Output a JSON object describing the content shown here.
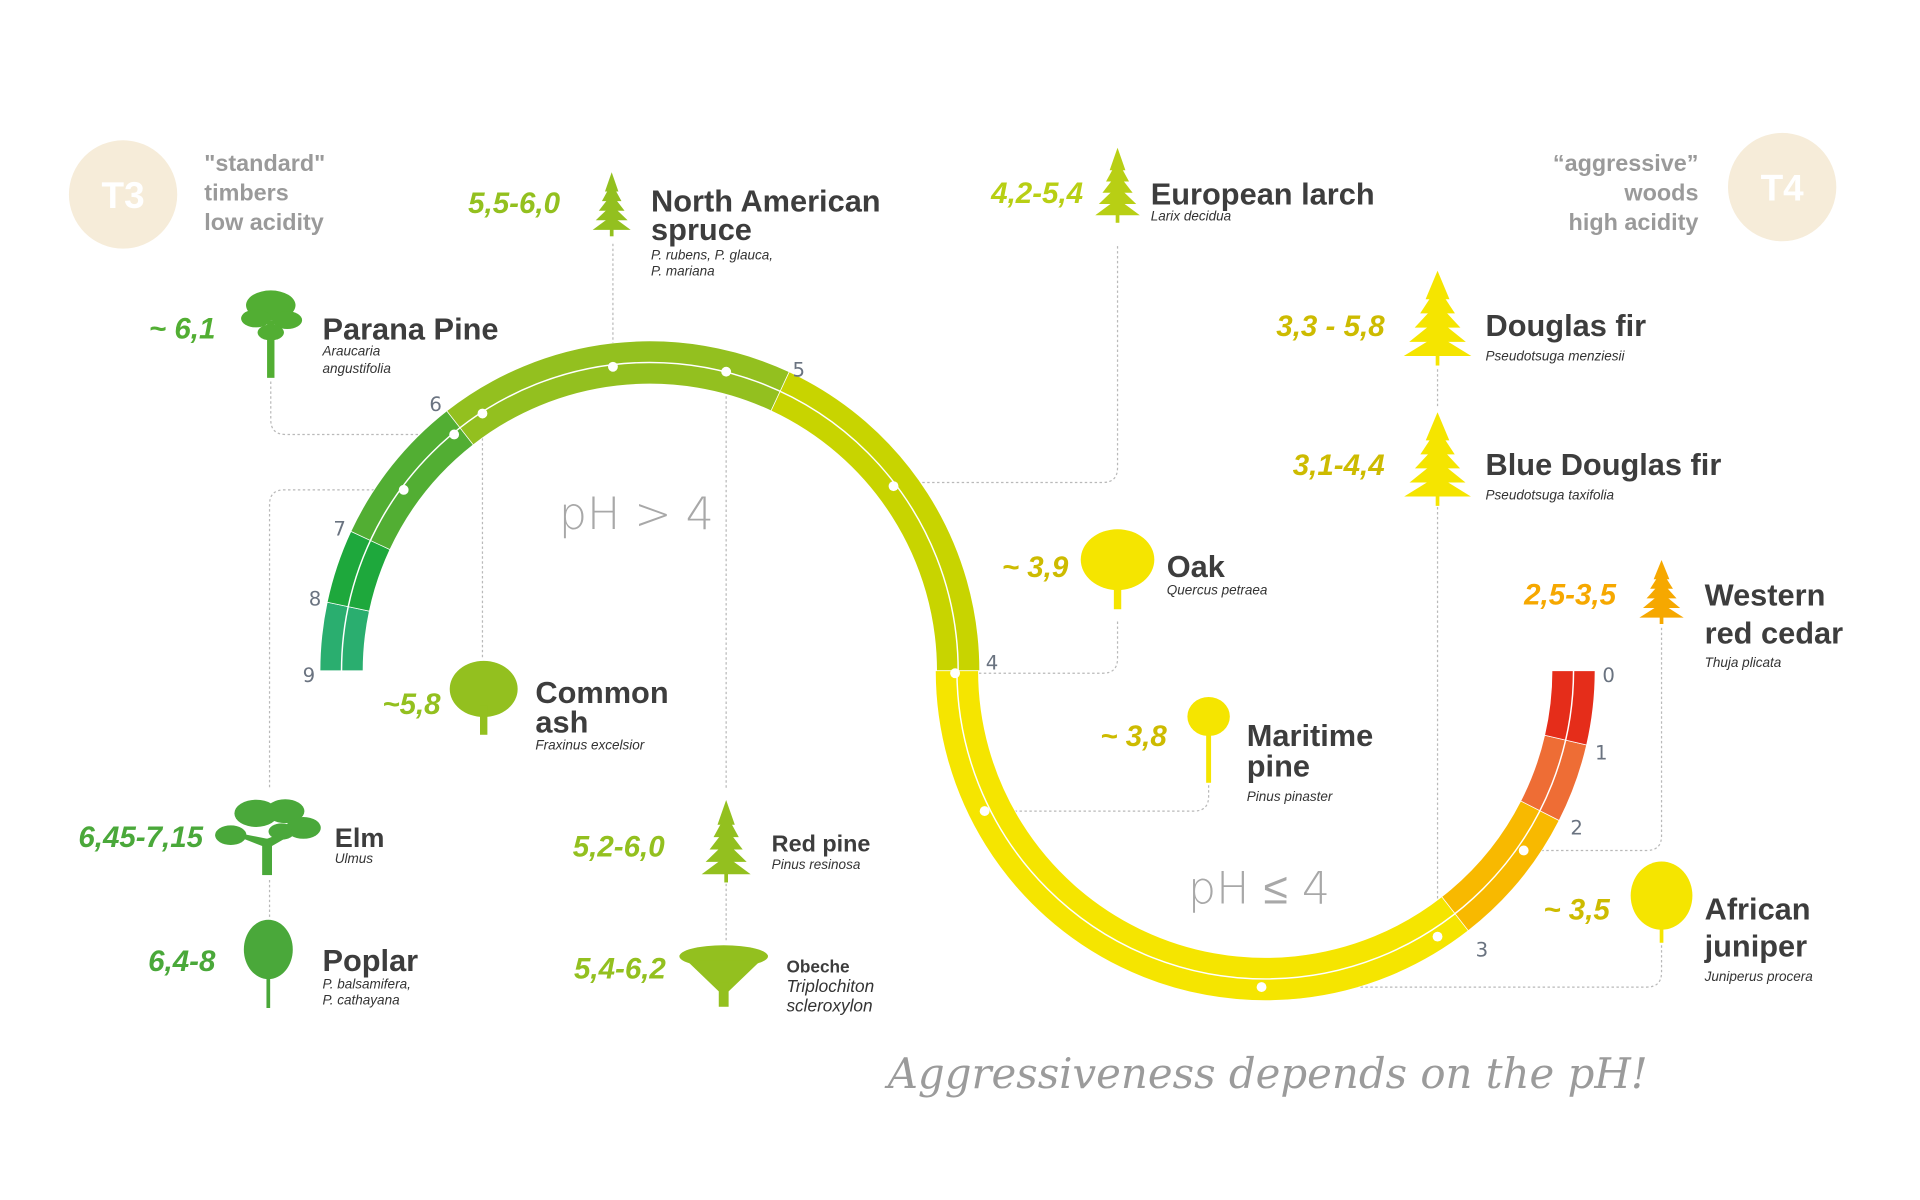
{
  "header": {
    "left": {
      "badge": "T3",
      "lines": [
        "\"standard\"",
        "timbers",
        "low acidity"
      ]
    },
    "right": {
      "badge": "T4",
      "lines": [
        "“aggressive”",
        "woods",
        "high acidity"
      ]
    },
    "badge_color": "#f6ecd9"
  },
  "regions": {
    "upper": "pH > 4",
    "lower": "pH ≤ 4"
  },
  "tagline": "Aggressiveness depends on the pH!",
  "scale": {
    "ticks": [
      "9",
      "8",
      "7",
      "6",
      "5",
      "4",
      "3",
      "2",
      "1",
      "0"
    ],
    "segments": [
      {
        "from": 9,
        "to": 8,
        "color": "#2aae6f"
      },
      {
        "from": 8,
        "to": 7,
        "color": "#1ea83c"
      },
      {
        "from": 7,
        "to": 6,
        "color": "#52ae33"
      },
      {
        "from": 6,
        "to": 5,
        "color": "#93c01f"
      },
      {
        "from": 5,
        "to": 4,
        "color": "#c8d400"
      },
      {
        "from": 4,
        "to": 3,
        "color": "#f5e500"
      },
      {
        "from": 3,
        "to": 2,
        "color": "#f8b900"
      },
      {
        "from": 2,
        "to": 1,
        "color": "#ee6d35"
      },
      {
        "from": 1,
        "to": 0,
        "color": "#e52d1a"
      }
    ]
  },
  "species": [
    {
      "value": "5,5-6,0",
      "name": [
        "North American",
        "spruce"
      ],
      "latin": [
        "P. rubens, P. glauca,",
        "P. mariana"
      ],
      "color": "#93c01f",
      "icon": "conifer-tree-icon"
    },
    {
      "value": "4,2-5,4",
      "name": [
        "European larch"
      ],
      "latin": [
        "Larix decidua"
      ],
      "color": "#b8cf14",
      "icon": "larch-tree-icon"
    },
    {
      "value": "~ 6,1",
      "name": [
        "Parana Pine"
      ],
      "latin": [
        "Araucaria",
        "angustifolia"
      ],
      "color": "#52ae33",
      "icon": "araucaria-tree-icon"
    },
    {
      "value": "3,3 - 5,8",
      "name": [
        "Douglas fir"
      ],
      "latin": [
        "Pseudotsuga menziesii"
      ],
      "color": "#cdbb00",
      "icon": "fir-tree-icon",
      "icon_color": "#f5e500"
    },
    {
      "value": "3,1-4,4",
      "name": [
        "Blue Douglas fir"
      ],
      "latin": [
        "Pseudotsuga taxifolia"
      ],
      "color": "#cdbb00",
      "icon": "fir-tree-icon",
      "icon_color": "#f5e500"
    },
    {
      "value": "~ 3,9",
      "name": [
        "Oak"
      ],
      "latin": [
        "Quercus petraea"
      ],
      "color": "#cdbb00",
      "icon": "oak-tree-icon",
      "icon_color": "#f5e500"
    },
    {
      "value": "2,5-3,5",
      "name": [
        "Western",
        "red cedar"
      ],
      "latin": [
        "Thuja plicata"
      ],
      "color": "#f6a800",
      "icon": "cedar-tree-icon"
    },
    {
      "value": "~5,8",
      "name": [
        "Common",
        "ash"
      ],
      "latin": [
        "Fraxinus excelsior"
      ],
      "color": "#93c01f",
      "icon": "ash-tree-icon"
    },
    {
      "value": "~ 3,8",
      "name": [
        "Maritime",
        "pine"
      ],
      "latin": [
        "Pinus pinaster"
      ],
      "color": "#cdbb00",
      "icon": "maritime-pine-icon",
      "icon_color": "#f5e500"
    },
    {
      "value": "6,45-7,15",
      "name": [
        "Elm"
      ],
      "latin": [
        "Ulmus"
      ],
      "color": "#4aa83a",
      "icon": "elm-tree-icon"
    },
    {
      "value": "5,2-6,0",
      "name": [
        "Red pine"
      ],
      "latin": [
        "Pinus resinosa"
      ],
      "color": "#93c01f",
      "icon": "conifer-tree-icon"
    },
    {
      "value": "6,4-8",
      "name": [
        "Poplar"
      ],
      "latin": [
        "P. balsamifera,",
        "P. cathayana"
      ],
      "color": "#4aa83a",
      "icon": "poplar-tree-icon"
    },
    {
      "value": "5,4-6,2",
      "name": [
        "Obeche"
      ],
      "latin": [
        "Triplochiton",
        "scleroxylon"
      ],
      "color": "#93c01f",
      "icon": "umbrella-tree-icon"
    },
    {
      "value": "~ 3,5",
      "name": [
        "African",
        "juniper"
      ],
      "latin": [
        "Juniperus procera"
      ],
      "color": "#cdbb00",
      "icon": "juniper-tree-icon",
      "icon_color": "#f5e500"
    }
  ]
}
